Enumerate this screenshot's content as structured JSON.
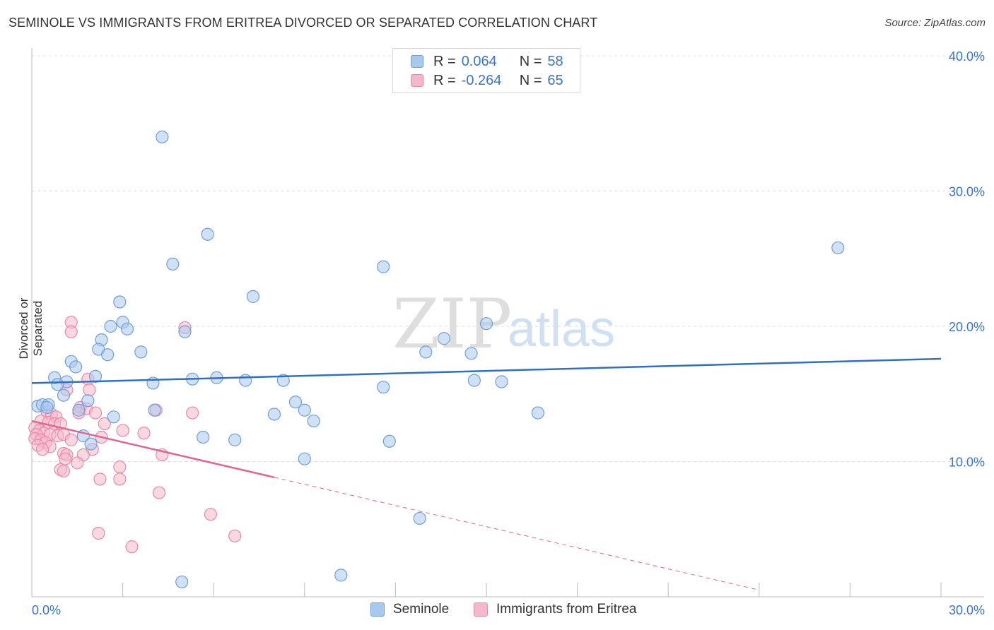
{
  "title": "SEMINOLE VS IMMIGRANTS FROM ERITREA DIVORCED OR SEPARATED CORRELATION CHART",
  "source": "Source: ZipAtlas.com",
  "watermark": {
    "zip": "ZIP",
    "atlas": "atlas"
  },
  "legend_top": [
    {
      "r_label": "R =",
      "r_value": "0.064",
      "n_label": "N =",
      "n_value": "58"
    },
    {
      "r_label": "R =",
      "r_value": "-0.264",
      "n_label": "N =",
      "n_value": "65"
    }
  ],
  "legend_bottom": [
    {
      "label": "Seminole"
    },
    {
      "label": "Immigrants from Eritrea"
    }
  ],
  "colors": {
    "seminole_fill": "#a9c8ee",
    "seminole_stroke": "#6e9fd8",
    "seminole_line": "#2f6fc4",
    "eritrea_fill": "#f5b8cb",
    "eritrea_stroke": "#e889a8",
    "eritrea_line": "#e0668f",
    "axis_text": "#3a74c9",
    "grid": "#dddddd"
  },
  "chart_data": {
    "type": "scatter",
    "title": "SEMINOLE VS IMMIGRANTS FROM ERITREA DIVORCED OR SEPARATED CORRELATION CHART",
    "xlabel": "",
    "ylabel": "Divorced or Separated",
    "xlim": [
      0,
      30
    ],
    "ylim": [
      0,
      40
    ],
    "x_tick_labels": [
      "0.0%",
      "30.0%"
    ],
    "y_ticks": [
      10,
      20,
      30,
      40
    ],
    "y_tick_labels": [
      "10.0%",
      "20.0%",
      "30.0%",
      "40.0%"
    ],
    "grid": true,
    "legend_placement": "top-center",
    "series": [
      {
        "name": "Seminole",
        "r": 0.064,
        "n": 58,
        "trend": {
          "x": [
            0,
            30
          ],
          "y": [
            15.8,
            17.6
          ],
          "dashed_from": null
        },
        "points": [
          [
            4.3,
            34.0
          ],
          [
            5.8,
            26.8
          ],
          [
            4.65,
            24.6
          ],
          [
            11.6,
            24.4
          ],
          [
            26.6,
            25.8
          ],
          [
            7.3,
            22.2
          ],
          [
            2.9,
            21.8
          ],
          [
            2.6,
            20.0
          ],
          [
            3.0,
            20.3
          ],
          [
            3.15,
            19.8
          ],
          [
            5.05,
            19.6
          ],
          [
            15.0,
            20.2
          ],
          [
            13.6,
            19.1
          ],
          [
            2.3,
            19.0
          ],
          [
            2.2,
            18.3
          ],
          [
            2.5,
            17.9
          ],
          [
            3.6,
            18.1
          ],
          [
            13.0,
            18.1
          ],
          [
            14.5,
            18.0
          ],
          [
            1.3,
            17.4
          ],
          [
            1.45,
            17.0
          ],
          [
            2.1,
            16.3
          ],
          [
            0.75,
            16.2
          ],
          [
            6.1,
            16.2
          ],
          [
            5.3,
            16.1
          ],
          [
            7.05,
            16.0
          ],
          [
            8.3,
            16.0
          ],
          [
            14.6,
            16.0
          ],
          [
            15.5,
            15.9
          ],
          [
            4.0,
            15.8
          ],
          [
            1.15,
            15.9
          ],
          [
            0.85,
            15.7
          ],
          [
            11.6,
            15.5
          ],
          [
            1.05,
            14.9
          ],
          [
            1.85,
            14.5
          ],
          [
            0.2,
            14.1
          ],
          [
            0.35,
            14.2
          ],
          [
            0.55,
            14.2
          ],
          [
            0.5,
            14.0
          ],
          [
            8.7,
            14.4
          ],
          [
            4.05,
            13.8
          ],
          [
            9.0,
            13.8
          ],
          [
            1.55,
            13.8
          ],
          [
            8.0,
            13.5
          ],
          [
            16.7,
            13.6
          ],
          [
            2.7,
            13.3
          ],
          [
            9.3,
            13.0
          ],
          [
            1.7,
            11.9
          ],
          [
            5.65,
            11.8
          ],
          [
            6.7,
            11.6
          ],
          [
            11.8,
            11.5
          ],
          [
            1.95,
            11.3
          ],
          [
            9.0,
            10.2
          ],
          [
            12.8,
            5.8
          ],
          [
            10.2,
            1.6
          ],
          [
            4.95,
            1.1
          ]
        ]
      },
      {
        "name": "Immigrants from Eritrea",
        "r": -0.264,
        "n": 65,
        "trend": {
          "x": [
            0,
            24
          ],
          "y": [
            13.0,
            0.5
          ],
          "dashed_from": 8
        },
        "points": [
          [
            1.3,
            20.3
          ],
          [
            1.3,
            19.6
          ],
          [
            5.05,
            19.9
          ],
          [
            1.85,
            16.1
          ],
          [
            1.15,
            15.3
          ],
          [
            1.9,
            15.3
          ],
          [
            1.6,
            14.0
          ],
          [
            1.8,
            13.9
          ],
          [
            0.5,
            13.7
          ],
          [
            0.65,
            13.5
          ],
          [
            0.8,
            13.3
          ],
          [
            1.55,
            13.6
          ],
          [
            2.1,
            13.6
          ],
          [
            4.1,
            13.8
          ],
          [
            5.3,
            13.6
          ],
          [
            0.3,
            13.0
          ],
          [
            0.55,
            12.9
          ],
          [
            0.75,
            12.8
          ],
          [
            0.95,
            12.8
          ],
          [
            2.4,
            12.8
          ],
          [
            0.1,
            12.5
          ],
          [
            0.25,
            12.3
          ],
          [
            0.4,
            12.1
          ],
          [
            0.15,
            12.0
          ],
          [
            0.6,
            12.0
          ],
          [
            0.85,
            11.9
          ],
          [
            1.05,
            12.0
          ],
          [
            3.0,
            12.3
          ],
          [
            3.7,
            12.1
          ],
          [
            0.1,
            11.7
          ],
          [
            0.3,
            11.6
          ],
          [
            0.45,
            11.4
          ],
          [
            0.2,
            11.2
          ],
          [
            1.3,
            11.6
          ],
          [
            2.3,
            11.8
          ],
          [
            0.6,
            11.1
          ],
          [
            0.35,
            10.9
          ],
          [
            2.0,
            10.9
          ],
          [
            1.05,
            10.6
          ],
          [
            1.15,
            10.5
          ],
          [
            1.1,
            10.2
          ],
          [
            1.7,
            10.5
          ],
          [
            4.3,
            10.5
          ],
          [
            1.5,
            9.9
          ],
          [
            2.9,
            9.6
          ],
          [
            0.95,
            9.4
          ],
          [
            1.05,
            9.3
          ],
          [
            2.25,
            8.7
          ],
          [
            2.9,
            8.7
          ],
          [
            4.2,
            7.7
          ],
          [
            5.9,
            6.1
          ],
          [
            6.7,
            4.5
          ],
          [
            2.2,
            4.7
          ],
          [
            3.3,
            3.7
          ]
        ]
      }
    ]
  }
}
